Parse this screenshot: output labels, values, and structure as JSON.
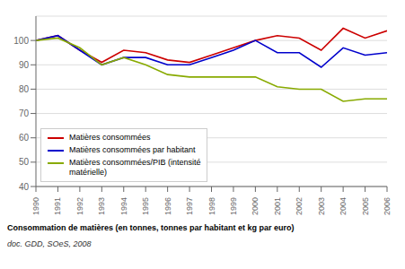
{
  "chart_data": {
    "type": "line",
    "title": "Consommation de matières (en tonnes, tonnes par habitant et kg par euro)",
    "subtitle": "doc. GDD, SOeS, 2008",
    "x": [
      1990,
      1991,
      1992,
      1993,
      1994,
      1995,
      1996,
      1997,
      1998,
      1999,
      2000,
      2001,
      2002,
      2003,
      2004,
      2005,
      2006
    ],
    "series": [
      {
        "name": "Matières consommées",
        "color": "#cc0000",
        "values": [
          100,
          102,
          96,
          91,
          96,
          95,
          92,
          91,
          94,
          97,
          100,
          102,
          101,
          96,
          105,
          101,
          104
        ]
      },
      {
        "name": "Matières consommées par habitant",
        "color": "#0000cc",
        "values": [
          100,
          102,
          96,
          90,
          93,
          93,
          90,
          90,
          93,
          96,
          100,
          95,
          95,
          89,
          97,
          94,
          95
        ]
      },
      {
        "name": "Matières consommées/PIB (intensité\nmatérielle)",
        "color": "#88aa00",
        "values": [
          100,
          101,
          97,
          90,
          93,
          90,
          86,
          85,
          85,
          85,
          85,
          81,
          80,
          80,
          75,
          76,
          76
        ]
      }
    ],
    "xlim": [
      1990,
      2006
    ],
    "xticks": [
      1990,
      1991,
      1992,
      1993,
      1994,
      1995,
      1996,
      1997,
      1998,
      1999,
      2000,
      2001,
      2002,
      2003,
      2004,
      2005,
      2006
    ],
    "ylim": [
      40,
      110
    ],
    "yticks": [
      40,
      50,
      60,
      70,
      80,
      90,
      100
    ],
    "grid": true,
    "legend": "lower left"
  }
}
